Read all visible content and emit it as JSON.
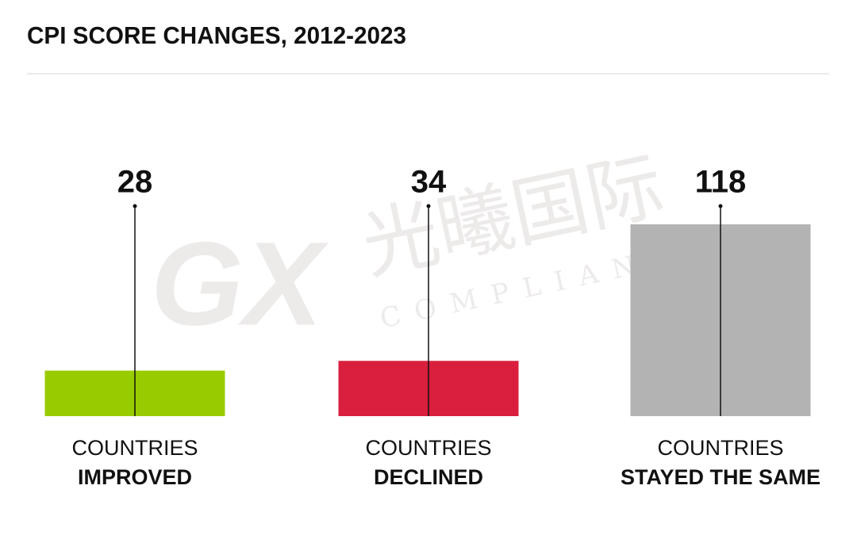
{
  "chart_data": {
    "type": "bar",
    "title": "CPI SCORE CHANGES, 2012-2023",
    "label_top": "COUNTRIES",
    "categories": [
      "IMPROVED",
      "DECLINED",
      "STAYED THE SAME"
    ],
    "values": [
      28,
      34,
      118
    ],
    "colors": [
      "#99cc00",
      "#d91f3d",
      "#b3b3b3"
    ],
    "watermark": {
      "logo": "GX",
      "name": "光曦国际",
      "sub": "COMPLIANCE"
    }
  }
}
